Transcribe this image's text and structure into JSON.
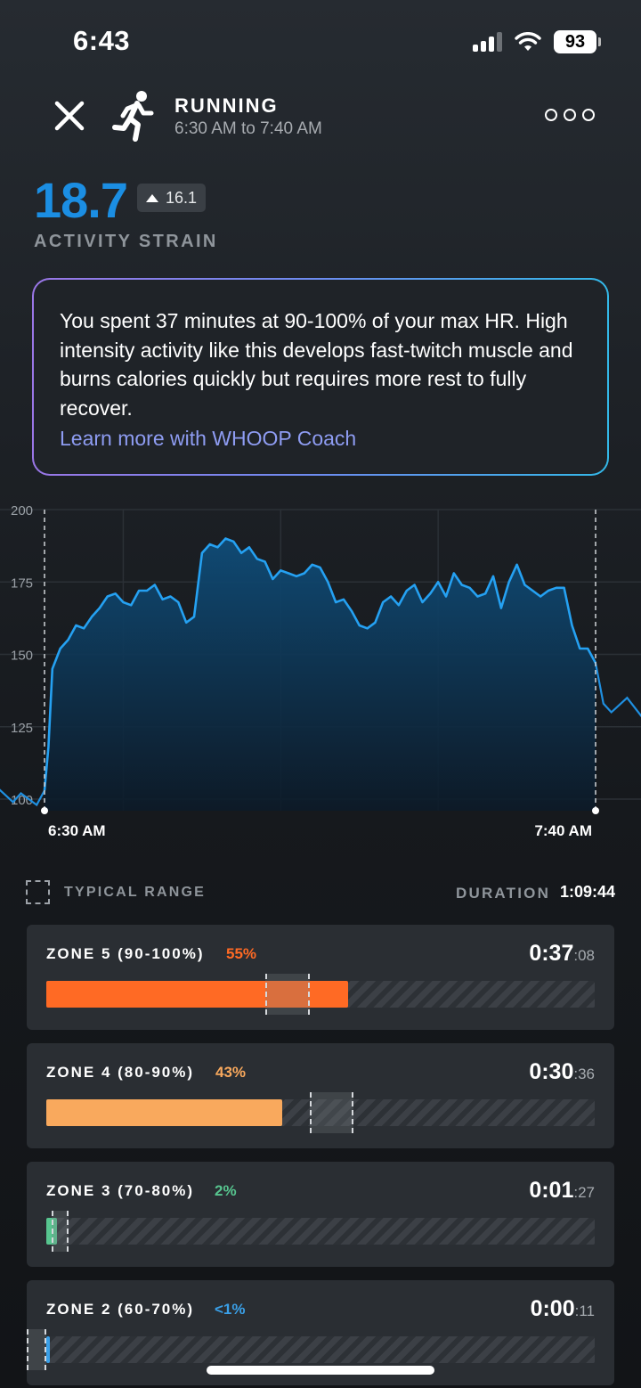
{
  "status_bar": {
    "time": "6:43",
    "battery": "93"
  },
  "header": {
    "activity_title": "RUNNING",
    "activity_time": "6:30 AM to 7:40 AM",
    "icons": {
      "close": "close-icon",
      "activity": "runner-icon",
      "more": "more-dots-icon"
    }
  },
  "strain": {
    "value": "18.7",
    "delta": "16.1",
    "label": "ACTIVITY STRAIN",
    "color": "#1b8ee3"
  },
  "coach": {
    "text": "You spent 37 minutes at 90-100% of your max HR. High intensity activity like this develops fast-twitch muscle and burns calories quickly but requires more rest to fully recover.",
    "link": "Learn more with WHOOP Coach"
  },
  "chart_data": {
    "type": "area",
    "ylim": [
      96,
      200
    ],
    "y_ticks": [
      "200",
      "175",
      "150",
      "125",
      "100"
    ],
    "x_tick_labels": [
      "6:30 AM",
      "7:40 AM"
    ],
    "series": [
      {
        "x_minutes": [
          -10,
          -8,
          -6,
          -4,
          -3,
          -2,
          -1,
          0,
          0.5,
          1,
          2,
          3,
          4,
          5,
          6,
          7,
          8,
          9,
          10,
          11,
          12,
          13,
          14,
          15,
          16,
          17,
          18,
          19,
          20,
          21,
          22,
          23,
          24,
          25,
          26,
          27,
          28,
          29,
          30,
          31,
          32,
          33,
          34,
          35,
          36,
          37,
          38,
          39,
          40,
          41,
          42,
          43,
          44,
          45,
          46,
          47,
          48,
          49,
          50,
          51,
          52,
          53,
          54,
          55,
          56,
          57,
          58,
          59,
          60,
          61,
          62,
          63,
          64,
          65,
          66,
          67,
          68,
          69,
          70,
          71,
          72,
          74,
          76,
          78,
          80
        ],
        "hr": [
          103,
          101,
          104,
          99,
          102,
          100,
          98,
          103,
          118,
          145,
          152,
          155,
          160,
          159,
          163,
          166,
          170,
          171,
          168,
          167,
          172,
          172,
          174,
          169,
          170,
          168,
          161,
          163,
          185,
          188,
          187,
          190,
          189,
          185,
          187,
          183,
          182,
          176,
          179,
          178,
          177,
          178,
          181,
          180,
          175,
          168,
          169,
          165,
          160,
          159,
          161,
          168,
          170,
          167,
          172,
          174,
          168,
          171,
          175,
          170,
          178,
          174,
          173,
          170,
          171,
          177,
          166,
          175,
          181,
          174,
          172,
          170,
          172,
          173,
          173,
          160,
          152,
          152,
          147,
          133,
          130,
          135,
          128,
          131,
          124
        ]
      }
    ]
  },
  "legend": {
    "typical_range": "TYPICAL RANGE",
    "duration_label": "DURATION",
    "duration_value": "1:09:44"
  },
  "zones": [
    {
      "name": "ZONE 5 (90-100%)",
      "pct": "55%",
      "pct_value": 55,
      "time_main": "0:37",
      "time_sec": ":08",
      "color": "#ff6a24",
      "range": [
        40,
        48
      ]
    },
    {
      "name": "ZONE 4 (80-90%)",
      "pct": "43%",
      "pct_value": 43,
      "time_main": "0:30",
      "time_sec": ":36",
      "color": "#f9a95d",
      "range": [
        48,
        56
      ]
    },
    {
      "name": "ZONE 3 (70-80%)",
      "pct": "2%",
      "pct_value": 2,
      "time_main": "0:01",
      "time_sec": ":27",
      "color": "#57c58f",
      "range": [
        1,
        4
      ]
    },
    {
      "name": "ZONE 2 (60-70%)",
      "pct": "<1%",
      "pct_value": 0.5,
      "time_main": "0:00",
      "time_sec": ":11",
      "color": "#3aa0e8",
      "range": [
        -3.5,
        0
      ]
    }
  ]
}
